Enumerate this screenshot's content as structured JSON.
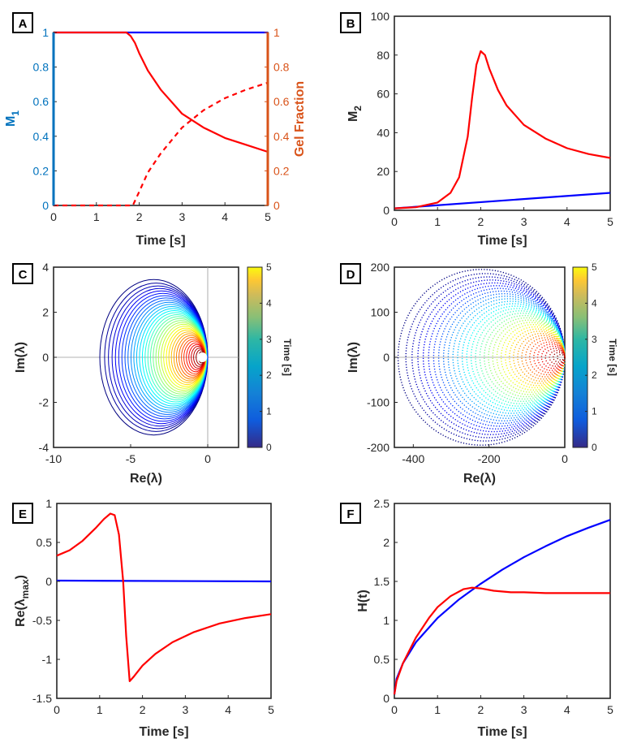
{
  "chart_data": [
    {
      "panel": "A",
      "type": "line",
      "xlabel": "Time [s]",
      "ylabel": "M",
      "ylabel_sub": "1",
      "ylabel_right": "Gel Fraction",
      "xlim": [
        0,
        5
      ],
      "ylim": [
        0,
        1
      ],
      "ylim_right": [
        0,
        1
      ],
      "xticks": [
        "0",
        "1",
        "2",
        "3",
        "4",
        "5"
      ],
      "yticks": [
        "0",
        "0.2",
        "0.4",
        "0.6",
        "0.8",
        "1"
      ],
      "yticks_right": [
        "0",
        "0.2",
        "0.4",
        "0.6",
        "0.8",
        "1"
      ],
      "colors": {
        "left_axis": "#0072BD",
        "right_axis": "#D95319"
      },
      "series": [
        {
          "name": "M1 (blue)",
          "color": "#0000ff",
          "style": "solid",
          "x": [
            0,
            5
          ],
          "y": [
            1,
            1
          ]
        },
        {
          "name": "M1 (red)",
          "color": "#ff0000",
          "style": "solid",
          "x": [
            0,
            1.7,
            1.8,
            1.9,
            2.0,
            2.2,
            2.5,
            3.0,
            3.5,
            4.0,
            4.5,
            5.0
          ],
          "y": [
            1,
            1,
            0.98,
            0.94,
            0.88,
            0.78,
            0.67,
            0.53,
            0.45,
            0.39,
            0.35,
            0.31
          ]
        },
        {
          "name": "Gel fraction (red dashed)",
          "color": "#ff0000",
          "style": "dashed",
          "x": [
            0,
            1.85,
            2.0,
            2.2,
            2.5,
            3.0,
            3.5,
            4.0,
            4.5,
            5.0
          ],
          "y": [
            0,
            0,
            0.08,
            0.19,
            0.3,
            0.45,
            0.55,
            0.62,
            0.67,
            0.71
          ]
        }
      ]
    },
    {
      "panel": "B",
      "type": "line",
      "xlabel": "Time [s]",
      "ylabel": "M",
      "ylabel_sub": "2",
      "xlim": [
        0,
        5
      ],
      "ylim": [
        0,
        100
      ],
      "xticks": [
        "0",
        "1",
        "2",
        "3",
        "4",
        "5"
      ],
      "yticks": [
        "0",
        "20",
        "40",
        "60",
        "80",
        "100"
      ],
      "series": [
        {
          "name": "M2 (blue)",
          "color": "#0000ff",
          "style": "solid",
          "x": [
            0,
            5
          ],
          "y": [
            1,
            9
          ]
        },
        {
          "name": "M2 (red)",
          "color": "#ff0000",
          "style": "solid",
          "x": [
            0,
            0.5,
            1.0,
            1.3,
            1.5,
            1.7,
            1.8,
            1.9,
            2.0,
            2.1,
            2.2,
            2.4,
            2.6,
            3.0,
            3.5,
            4.0,
            4.5,
            5.0
          ],
          "y": [
            1,
            1.6,
            4,
            9,
            17,
            38,
            58,
            75,
            82,
            80,
            73,
            62,
            54,
            44,
            37,
            32,
            29,
            27
          ]
        }
      ]
    },
    {
      "panel": "C",
      "type": "scatter",
      "xlabel": "Re(λ)",
      "ylabel": "Im(λ)",
      "xlim": [
        -10,
        2
      ],
      "ylim": [
        -4,
        4
      ],
      "xticks": [
        "-10",
        "-5",
        "0"
      ],
      "xtick_values": [
        -10,
        -5,
        0
      ],
      "yticks": [
        "-4",
        "-2",
        "0",
        "2",
        "4"
      ],
      "ytick_values": [
        -4,
        -2,
        0,
        2,
        4
      ],
      "description_note": "nested eigenvalue loops colored by time",
      "loop_left_start": -7,
      "loop_left_end": -0.6,
      "loop_right_start": 0,
      "loop_right_end": -0.2,
      "loop_imag_start": 3.45,
      "loop_imag_end": 0.25,
      "colorbar": {
        "label": "Time [s]",
        "range": [
          0,
          5
        ],
        "ticks": [
          "0",
          "1",
          "2",
          "3",
          "4",
          "5"
        ]
      }
    },
    {
      "panel": "D",
      "type": "scatter",
      "xlabel": "Re(λ)",
      "ylabel": "Im(λ)",
      "xlim": [
        -450,
        0
      ],
      "ylim": [
        -200,
        200
      ],
      "xticks": [
        "-400",
        "-200",
        "0"
      ],
      "xtick_values": [
        -400,
        -200,
        0
      ],
      "yticks": [
        "-200",
        "-100",
        "0",
        "100",
        "200"
      ],
      "ytick_values": [
        -200,
        -100,
        0,
        100,
        200
      ],
      "loop_left_start": -440,
      "loop_left_end": -20,
      "loop_right_start": 0,
      "loop_right_end": 0,
      "loop_imag_start": 195,
      "loop_imag_end": 6,
      "colorbar": {
        "label": "Time [s]",
        "range": [
          0,
          5
        ],
        "ticks": [
          "0",
          "1",
          "2",
          "3",
          "4",
          "5"
        ]
      }
    },
    {
      "panel": "E",
      "type": "line",
      "xlabel": "Time [s]",
      "ylabel": "Re(λ",
      "ylabel_sub": "max",
      "ylabel_suffix": ")",
      "xlim": [
        0,
        5
      ],
      "ylim": [
        -1.5,
        1
      ],
      "xticks": [
        "0",
        "1",
        "2",
        "3",
        "4",
        "5"
      ],
      "yticks": [
        "-1.5",
        "-1",
        "-0.5",
        "0",
        "0.5",
        "1"
      ],
      "series": [
        {
          "name": "blue",
          "color": "#0000ff",
          "style": "solid",
          "x": [
            0,
            5
          ],
          "y": [
            0.01,
            0.0
          ]
        },
        {
          "name": "red",
          "color": "#ff0000",
          "style": "solid",
          "x": [
            0,
            0.3,
            0.6,
            0.9,
            1.1,
            1.25,
            1.35,
            1.45,
            1.55,
            1.62,
            1.7,
            1.8,
            2.0,
            2.3,
            2.7,
            3.2,
            3.8,
            4.4,
            5.0
          ],
          "y": [
            0.33,
            0.4,
            0.52,
            0.68,
            0.8,
            0.87,
            0.85,
            0.6,
            0.0,
            -0.7,
            -1.28,
            -1.22,
            -1.08,
            -0.93,
            -0.78,
            -0.65,
            -0.54,
            -0.47,
            -0.42
          ]
        }
      ]
    },
    {
      "panel": "F",
      "type": "line",
      "xlabel": "Time [s]",
      "ylabel": "H(t)",
      "xlim": [
        0,
        5
      ],
      "ylim": [
        0,
        2.5
      ],
      "xticks": [
        "0",
        "1",
        "2",
        "3",
        "4",
        "5"
      ],
      "yticks": [
        "0",
        "0.5",
        "1",
        "1.5",
        "2",
        "2.5"
      ],
      "series": [
        {
          "name": "blue",
          "color": "#0000ff",
          "style": "solid",
          "x": [
            0,
            0.05,
            0.2,
            0.5,
            1.0,
            1.5,
            2.0,
            2.5,
            3.0,
            3.5,
            4.0,
            4.5,
            5.0
          ],
          "y": [
            0.05,
            0.25,
            0.45,
            0.72,
            1.03,
            1.27,
            1.47,
            1.65,
            1.81,
            1.95,
            2.08,
            2.19,
            2.29
          ]
        },
        {
          "name": "red",
          "color": "#ff0000",
          "style": "solid",
          "x": [
            0,
            0.05,
            0.2,
            0.5,
            0.8,
            1.0,
            1.3,
            1.6,
            1.8,
            2.0,
            2.3,
            2.7,
            3.0,
            3.5,
            4.0,
            4.5,
            5.0
          ],
          "y": [
            0.05,
            0.22,
            0.45,
            0.78,
            1.03,
            1.17,
            1.31,
            1.4,
            1.42,
            1.41,
            1.38,
            1.36,
            1.36,
            1.35,
            1.35,
            1.35,
            1.35
          ]
        }
      ]
    }
  ]
}
